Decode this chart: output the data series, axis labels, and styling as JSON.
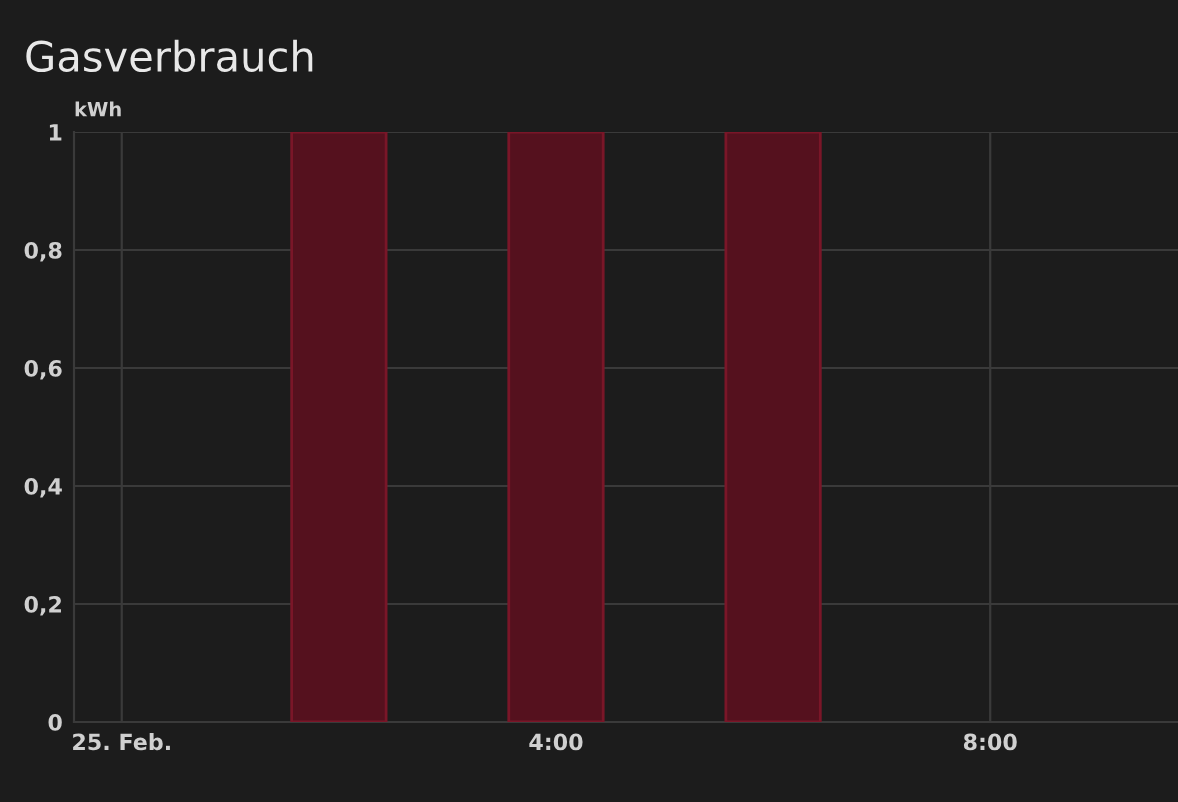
{
  "chart_data": {
    "type": "bar",
    "title": "Gasverbrauch",
    "ylabel": "kWh",
    "x": [
      2,
      4,
      6
    ],
    "values": [
      1,
      1,
      1
    ],
    "color": "#55111e",
    "xlim": [
      -0.44,
      9.73
    ],
    "xticks": [
      {
        "value": 0,
        "label": "25. Feb."
      },
      {
        "value": 4,
        "label": "4:00"
      },
      {
        "value": 8,
        "label": "8:00"
      }
    ],
    "ylim": [
      0,
      1
    ],
    "yticks": [
      {
        "value": 0,
        "label": "0"
      },
      {
        "value": 0.2,
        "label": "0,2"
      },
      {
        "value": 0.4,
        "label": "0,4"
      },
      {
        "value": 0.6,
        "label": "0,6"
      },
      {
        "value": 0.8,
        "label": "0,8"
      },
      {
        "value": 1,
        "label": "1"
      }
    ],
    "grid": true
  }
}
